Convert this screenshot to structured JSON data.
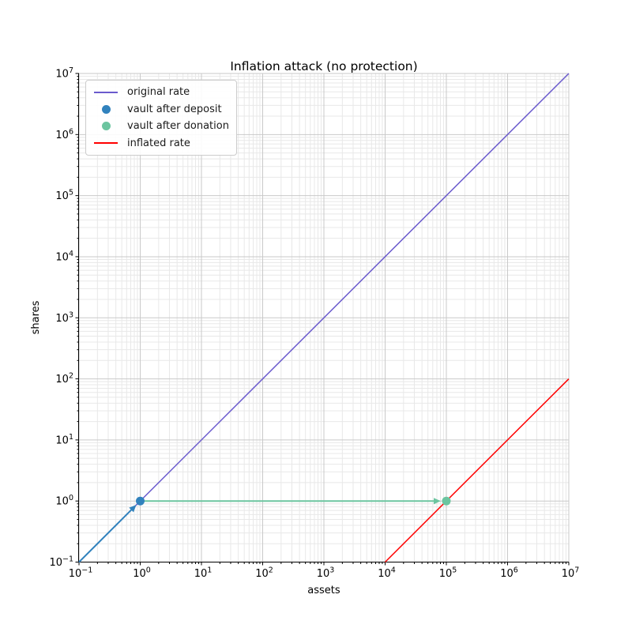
{
  "figure": {
    "title": "Inflation attack (no protection)",
    "background": "#ffffff"
  },
  "chart_data": {
    "type": "line",
    "title": "Inflation attack (no protection)",
    "xlabel": "assets",
    "ylabel": "shares",
    "xscale": "log",
    "yscale": "log",
    "xlim": [
      0.1,
      10000000
    ],
    "ylim": [
      0.1,
      10000000
    ],
    "x_tick_exponents": [
      -1,
      0,
      1,
      2,
      3,
      4,
      5,
      6,
      7
    ],
    "y_tick_exponents": [
      -1,
      0,
      1,
      2,
      3,
      4,
      5,
      6,
      7
    ],
    "grid": {
      "major": true,
      "minor": true,
      "major_color": "#c9c9c9",
      "minor_color": "#e8e8e8"
    },
    "axis_color": "#000000",
    "legend_position": "upper left",
    "series": [
      {
        "name": "original rate",
        "kind": "line",
        "color": "#6a5acd",
        "width": 1.5,
        "points": [
          [
            0.1,
            0.1
          ],
          [
            10000000,
            10000000
          ]
        ]
      },
      {
        "name": "vault after deposit",
        "kind": "point",
        "color": "#3182bd",
        "point": [
          1,
          1
        ],
        "arrow_from": [
          0.1,
          0.1
        ],
        "marker_radius": 5.5
      },
      {
        "name": "vault after donation",
        "kind": "point",
        "color": "#6cc5a0",
        "point": [
          100000,
          1
        ],
        "arrow_from": [
          1,
          1
        ],
        "marker_radius": 5.5
      },
      {
        "name": "inflated rate",
        "kind": "line",
        "color": "#ff0000",
        "width": 1.5,
        "points": [
          [
            10000,
            0.1
          ],
          [
            10000000,
            100
          ]
        ]
      }
    ]
  }
}
